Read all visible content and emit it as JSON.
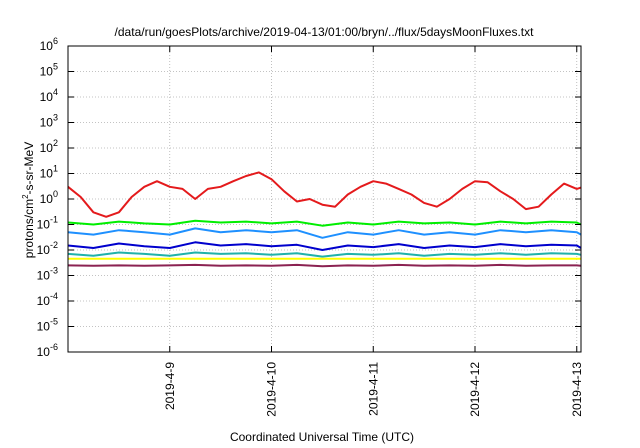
{
  "chart_data": {
    "type": "line",
    "title": "/data/run/goesPlots/archive/2019-04-13/01:00/bryn/../flux/5daysMoonFluxes.txt",
    "xlabel": "Coordinated Universal Time (UTC)",
    "ylabel": "protons/cm²-s-sr-MeV",
    "yscale": "log",
    "ylim": [
      1e-06,
      1000000.0
    ],
    "xlim": [
      "2019-04-08 00:00",
      "2019-04-13 01:00"
    ],
    "grid": true,
    "legend": "none",
    "x_ticks": [
      "2019-4-9",
      "2019-4-10",
      "2019-4-11",
      "2019-4-12",
      "2019-4-13"
    ],
    "y_ticks": [
      {
        "base": "10",
        "exp": "-6"
      },
      {
        "base": "10",
        "exp": "-5"
      },
      {
        "base": "10",
        "exp": "-4"
      },
      {
        "base": "10",
        "exp": "-3"
      },
      {
        "base": "10",
        "exp": "-2"
      },
      {
        "base": "10",
        "exp": "-1"
      },
      {
        "base": "10",
        "exp": "0"
      },
      {
        "base": "10",
        "exp": "1"
      },
      {
        "base": "10",
        "exp": "2"
      },
      {
        "base": "10",
        "exp": "3"
      },
      {
        "base": "10",
        "exp": "4"
      },
      {
        "base": "10",
        "exp": "5"
      },
      {
        "base": "10",
        "exp": "6"
      }
    ],
    "series": [
      {
        "color": "#e41a1c",
        "x": [
          "2019-04-08 00:00",
          "2019-04-08 03:00",
          "2019-04-08 06:00",
          "2019-04-08 09:00",
          "2019-04-08 12:00",
          "2019-04-08 15:00",
          "2019-04-08 18:00",
          "2019-04-08 21:00",
          "2019-04-09 00:00",
          "2019-04-09 03:00",
          "2019-04-09 06:00",
          "2019-04-09 09:00",
          "2019-04-09 12:00",
          "2019-04-09 15:00",
          "2019-04-09 18:00",
          "2019-04-09 21:00",
          "2019-04-10 00:00",
          "2019-04-10 03:00",
          "2019-04-10 06:00",
          "2019-04-10 09:00",
          "2019-04-10 12:00",
          "2019-04-10 15:00",
          "2019-04-10 18:00",
          "2019-04-10 21:00",
          "2019-04-11 00:00",
          "2019-04-11 03:00",
          "2019-04-11 06:00",
          "2019-04-11 09:00",
          "2019-04-11 12:00",
          "2019-04-11 15:00",
          "2019-04-11 18:00",
          "2019-04-11 21:00",
          "2019-04-12 00:00",
          "2019-04-12 03:00",
          "2019-04-12 06:00",
          "2019-04-12 09:00",
          "2019-04-12 12:00",
          "2019-04-12 15:00",
          "2019-04-12 18:00",
          "2019-04-12 21:00",
          "2019-04-13 00:00",
          "2019-04-13 01:00"
        ],
        "y": [
          3,
          1.2,
          0.3,
          0.2,
          0.3,
          1.2,
          3,
          5,
          3,
          2.5,
          1,
          2.5,
          3,
          5,
          8,
          11,
          6,
          2,
          0.8,
          1,
          0.6,
          0.5,
          1.5,
          3,
          5,
          4,
          2.5,
          1.5,
          0.7,
          0.5,
          1,
          2.5,
          5,
          4.5,
          2,
          1,
          0.4,
          0.5,
          1.5,
          4,
          2.5,
          2.8
        ]
      },
      {
        "color": "#00ee00",
        "x": [
          "2019-04-08 00:00",
          "2019-04-08 06:00",
          "2019-04-08 12:00",
          "2019-04-08 18:00",
          "2019-04-09 00:00",
          "2019-04-09 06:00",
          "2019-04-09 12:00",
          "2019-04-09 18:00",
          "2019-04-10 00:00",
          "2019-04-10 06:00",
          "2019-04-10 12:00",
          "2019-04-10 18:00",
          "2019-04-11 00:00",
          "2019-04-11 06:00",
          "2019-04-11 12:00",
          "2019-04-11 18:00",
          "2019-04-12 00:00",
          "2019-04-12 06:00",
          "2019-04-12 12:00",
          "2019-04-12 18:00",
          "2019-04-13 00:00",
          "2019-04-13 01:00"
        ],
        "y": [
          0.12,
          0.1,
          0.13,
          0.11,
          0.1,
          0.14,
          0.12,
          0.13,
          0.11,
          0.13,
          0.09,
          0.12,
          0.1,
          0.13,
          0.11,
          0.12,
          0.1,
          0.13,
          0.11,
          0.13,
          0.12,
          0.1
        ]
      },
      {
        "color": "#1e90ff",
        "x": [
          "2019-04-08 00:00",
          "2019-04-08 06:00",
          "2019-04-08 12:00",
          "2019-04-08 18:00",
          "2019-04-09 00:00",
          "2019-04-09 06:00",
          "2019-04-09 12:00",
          "2019-04-09 18:00",
          "2019-04-10 00:00",
          "2019-04-10 06:00",
          "2019-04-10 12:00",
          "2019-04-10 18:00",
          "2019-04-11 00:00",
          "2019-04-11 06:00",
          "2019-04-11 12:00",
          "2019-04-11 18:00",
          "2019-04-12 00:00",
          "2019-04-12 06:00",
          "2019-04-12 12:00",
          "2019-04-12 18:00",
          "2019-04-13 00:00",
          "2019-04-13 01:00"
        ],
        "y": [
          0.05,
          0.04,
          0.06,
          0.05,
          0.04,
          0.07,
          0.05,
          0.06,
          0.05,
          0.06,
          0.03,
          0.05,
          0.04,
          0.06,
          0.04,
          0.05,
          0.04,
          0.06,
          0.05,
          0.06,
          0.05,
          0.04
        ]
      },
      {
        "color": "#0000cd",
        "x": [
          "2019-04-08 00:00",
          "2019-04-08 06:00",
          "2019-04-08 12:00",
          "2019-04-08 18:00",
          "2019-04-09 00:00",
          "2019-04-09 06:00",
          "2019-04-09 12:00",
          "2019-04-09 18:00",
          "2019-04-10 00:00",
          "2019-04-10 06:00",
          "2019-04-10 12:00",
          "2019-04-10 18:00",
          "2019-04-11 00:00",
          "2019-04-11 06:00",
          "2019-04-11 12:00",
          "2019-04-11 18:00",
          "2019-04-12 00:00",
          "2019-04-12 06:00",
          "2019-04-12 12:00",
          "2019-04-12 18:00",
          "2019-04-13 00:00",
          "2019-04-13 01:00"
        ],
        "y": [
          0.015,
          0.012,
          0.018,
          0.014,
          0.012,
          0.02,
          0.015,
          0.017,
          0.014,
          0.016,
          0.01,
          0.015,
          0.013,
          0.017,
          0.012,
          0.015,
          0.013,
          0.017,
          0.014,
          0.016,
          0.015,
          0.012
        ]
      },
      {
        "color": "#20b2aa",
        "x": [
          "2019-04-08 00:00",
          "2019-04-08 06:00",
          "2019-04-08 12:00",
          "2019-04-08 18:00",
          "2019-04-09 00:00",
          "2019-04-09 06:00",
          "2019-04-09 12:00",
          "2019-04-09 18:00",
          "2019-04-10 00:00",
          "2019-04-10 06:00",
          "2019-04-10 12:00",
          "2019-04-10 18:00",
          "2019-04-11 00:00",
          "2019-04-11 06:00",
          "2019-04-11 12:00",
          "2019-04-11 18:00",
          "2019-04-12 00:00",
          "2019-04-12 06:00",
          "2019-04-12 12:00",
          "2019-04-12 18:00",
          "2019-04-13 00:00",
          "2019-04-13 01:00"
        ],
        "y": [
          0.007,
          0.006,
          0.008,
          0.007,
          0.006,
          0.008,
          0.007,
          0.0075,
          0.0065,
          0.0075,
          0.0055,
          0.007,
          0.0065,
          0.0075,
          0.006,
          0.007,
          0.0065,
          0.0075,
          0.0065,
          0.0075,
          0.007,
          0.0065
        ]
      },
      {
        "color": "#ffff00",
        "x": [
          "2019-04-08 00:00",
          "2019-04-09 00:00",
          "2019-04-10 00:00",
          "2019-04-11 00:00",
          "2019-04-12 00:00",
          "2019-04-13 00:00",
          "2019-04-13 01:00"
        ],
        "y": [
          0.0045,
          0.0045,
          0.0045,
          0.0045,
          0.0045,
          0.0045,
          0.0045
        ]
      },
      {
        "color": "#8b2252",
        "x": [
          "2019-04-08 00:00",
          "2019-04-08 06:00",
          "2019-04-08 12:00",
          "2019-04-08 18:00",
          "2019-04-09 00:00",
          "2019-04-09 06:00",
          "2019-04-09 12:00",
          "2019-04-09 18:00",
          "2019-04-10 00:00",
          "2019-04-10 06:00",
          "2019-04-10 12:00",
          "2019-04-10 18:00",
          "2019-04-11 00:00",
          "2019-04-11 06:00",
          "2019-04-11 12:00",
          "2019-04-11 18:00",
          "2019-04-12 00:00",
          "2019-04-12 06:00",
          "2019-04-12 12:00",
          "2019-04-12 18:00",
          "2019-04-13 00:00",
          "2019-04-13 01:00"
        ],
        "y": [
          0.0025,
          0.0024,
          0.0025,
          0.0024,
          0.0025,
          0.0026,
          0.0024,
          0.0025,
          0.0024,
          0.0026,
          0.0023,
          0.0025,
          0.0024,
          0.0026,
          0.0024,
          0.0025,
          0.0024,
          0.0026,
          0.0024,
          0.0025,
          0.0025,
          0.0024
        ]
      }
    ]
  }
}
